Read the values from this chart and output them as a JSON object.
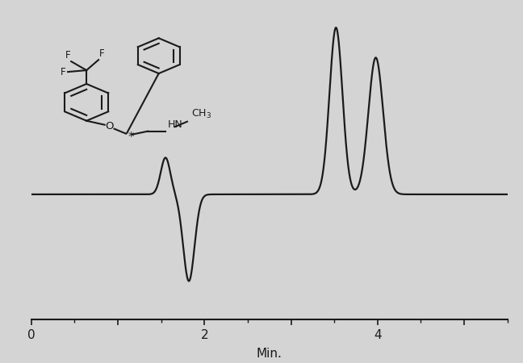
{
  "background_color": "#d4d4d4",
  "line_color": "#1a1a1a",
  "line_width": 1.6,
  "x_label": "Min.",
  "x_label_fontsize": 11,
  "tick_fontsize": 11,
  "xlim": [
    0,
    5.5
  ],
  "ylim": [
    -0.75,
    1.1
  ],
  "peaks": [
    {
      "mu": 1.55,
      "sigma": 0.055,
      "amp": 0.22
    },
    {
      "mu": 1.82,
      "sigma": 0.065,
      "amp": -0.52
    },
    {
      "mu": 3.52,
      "sigma": 0.075,
      "amp": 1.0
    },
    {
      "mu": 3.98,
      "sigma": 0.085,
      "amp": 0.82
    }
  ],
  "struct_xlim": [
    0,
    10
  ],
  "struct_ylim": [
    0,
    10
  ]
}
